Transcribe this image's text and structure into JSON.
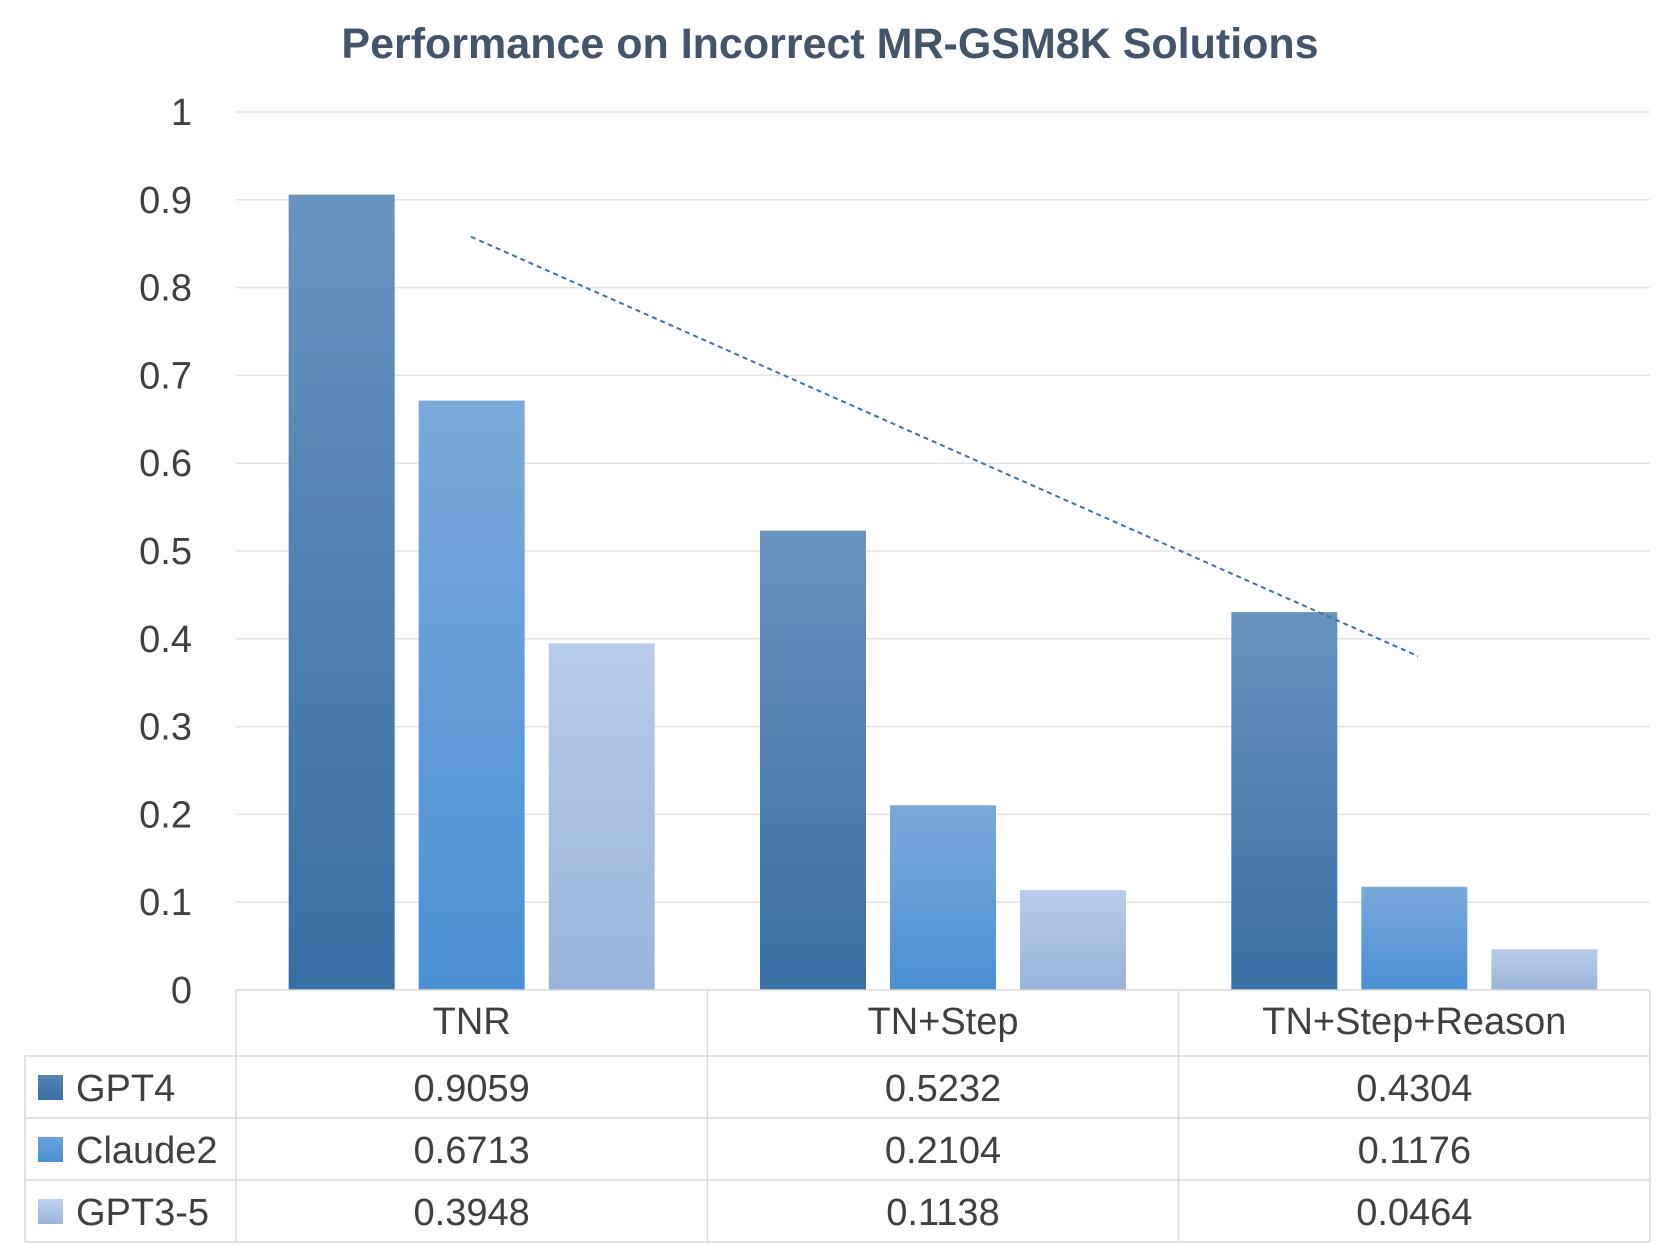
{
  "chart_data": {
    "type": "bar",
    "title": "Performance on Incorrect MR-GSM8K Solutions",
    "categories": [
      "TNR",
      "TN+Step",
      "TN+Step+Reason"
    ],
    "series": [
      {
        "name": "GPT4",
        "values": [
          0.9059,
          0.5232,
          0.4304
        ],
        "color": "#3d72a8"
      },
      {
        "name": "Claude2",
        "values": [
          0.6713,
          0.2104,
          0.1176
        ],
        "color": "#4f93d4"
      },
      {
        "name": "GPT3-5",
        "values": [
          0.3948,
          0.1138,
          0.0464
        ],
        "color": "#a9c1e2"
      }
    ],
    "data_table": {
      "rows": [
        {
          "label": "GPT4",
          "values": [
            "0.9059",
            "0.5232",
            "0.4304"
          ]
        },
        {
          "label": "Claude2",
          "values": [
            "0.6713",
            "0.2104",
            "0.1176"
          ]
        },
        {
          "label": "GPT3-5",
          "values": [
            "0.3948",
            "0.1138",
            "0.0464"
          ]
        }
      ]
    },
    "y_ticks": [
      "0",
      "0.1",
      "0.2",
      "0.3",
      "0.4",
      "0.5",
      "0.6",
      "0.7",
      "0.8",
      "0.9",
      "1"
    ],
    "ylim": [
      0,
      1
    ],
    "trendline": {
      "series": "GPT4",
      "style": "dashed",
      "color": "#3d72a8"
    },
    "grid": true,
    "legend": "data-table"
  }
}
